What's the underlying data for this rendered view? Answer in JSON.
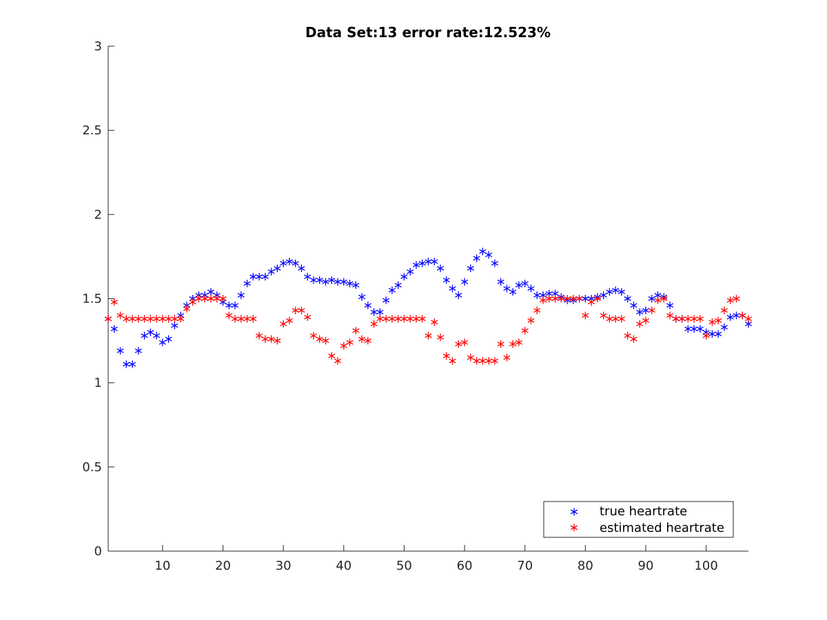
{
  "chart_data": {
    "type": "scatter",
    "title": "Data Set:13 error rate:12.523%",
    "xlabel": "",
    "ylabel": "",
    "xlim": [
      1,
      107
    ],
    "ylim": [
      0,
      3
    ],
    "xticks": [
      10,
      20,
      30,
      40,
      50,
      60,
      70,
      80,
      90,
      100
    ],
    "yticks": [
      0,
      0.5,
      1,
      1.5,
      2,
      2.5,
      3
    ],
    "ytick_labels": [
      "0",
      "0.5",
      "1",
      "1.5",
      "2",
      "2.5",
      "3"
    ],
    "grid": false,
    "legend_position": "bottom-right",
    "marker": "asterisk",
    "series": [
      {
        "name": "true heartrate",
        "color": "#0000ff",
        "x": [
          1,
          2,
          3,
          4,
          5,
          6,
          7,
          8,
          9,
          10,
          11,
          12,
          13,
          14,
          15,
          16,
          17,
          18,
          19,
          20,
          21,
          22,
          23,
          24,
          25,
          26,
          27,
          28,
          29,
          30,
          31,
          32,
          33,
          34,
          35,
          36,
          37,
          38,
          39,
          40,
          41,
          42,
          43,
          44,
          45,
          46,
          47,
          48,
          49,
          50,
          51,
          52,
          53,
          54,
          55,
          56,
          57,
          58,
          59,
          60,
          61,
          62,
          63,
          64,
          65,
          66,
          67,
          68,
          69,
          70,
          71,
          72,
          73,
          74,
          75,
          76,
          77,
          78,
          79,
          80,
          81,
          82,
          83,
          84,
          85,
          86,
          87,
          88,
          89,
          90,
          91,
          92,
          93,
          94,
          95,
          96,
          97,
          98,
          99,
          100,
          101,
          102,
          103,
          104,
          105,
          106,
          107
        ],
        "values": [
          1.38,
          1.32,
          1.19,
          1.11,
          1.11,
          1.19,
          1.28,
          1.3,
          1.28,
          1.24,
          1.26,
          1.34,
          1.4,
          1.46,
          1.5,
          1.52,
          1.52,
          1.54,
          1.52,
          1.48,
          1.46,
          1.46,
          1.52,
          1.59,
          1.63,
          1.63,
          1.63,
          1.66,
          1.68,
          1.71,
          1.72,
          1.71,
          1.68,
          1.63,
          1.61,
          1.61,
          1.6,
          1.61,
          1.6,
          1.6,
          1.59,
          1.58,
          1.51,
          1.46,
          1.42,
          1.42,
          1.49,
          1.55,
          1.58,
          1.63,
          1.66,
          1.7,
          1.71,
          1.72,
          1.72,
          1.68,
          1.61,
          1.56,
          1.52,
          1.6,
          1.68,
          1.74,
          1.78,
          1.76,
          1.71,
          1.6,
          1.56,
          1.54,
          1.58,
          1.59,
          1.56,
          1.52,
          1.52,
          1.53,
          1.53,
          1.51,
          1.49,
          1.49,
          1.5,
          1.5,
          1.5,
          1.51,
          1.52,
          1.54,
          1.55,
          1.54,
          1.5,
          1.46,
          1.42,
          1.43,
          1.5,
          1.52,
          1.51,
          1.46,
          1.38,
          1.38,
          1.32,
          1.32,
          1.32,
          1.3,
          1.29,
          1.29,
          1.33,
          1.39,
          1.4,
          1.4,
          1.35
        ]
      },
      {
        "name": "estimated heartrate",
        "color": "#ff0000",
        "x": [
          1,
          2,
          3,
          4,
          5,
          6,
          7,
          8,
          9,
          10,
          11,
          12,
          13,
          14,
          15,
          16,
          17,
          18,
          19,
          20,
          21,
          22,
          23,
          24,
          25,
          26,
          27,
          28,
          29,
          30,
          31,
          32,
          33,
          34,
          35,
          36,
          37,
          38,
          39,
          40,
          41,
          42,
          43,
          44,
          45,
          46,
          47,
          48,
          49,
          50,
          51,
          52,
          53,
          54,
          55,
          56,
          57,
          58,
          59,
          60,
          61,
          62,
          63,
          64,
          65,
          66,
          67,
          68,
          69,
          70,
          71,
          72,
          73,
          74,
          75,
          76,
          77,
          78,
          79,
          80,
          81,
          82,
          83,
          84,
          85,
          86,
          87,
          88,
          89,
          90,
          91,
          92,
          93,
          94,
          95,
          96,
          97,
          98,
          99,
          100,
          101,
          102,
          103,
          104,
          105,
          106,
          107
        ],
        "values": [
          1.38,
          1.48,
          1.4,
          1.38,
          1.38,
          1.38,
          1.38,
          1.38,
          1.38,
          1.38,
          1.38,
          1.38,
          1.38,
          1.44,
          1.48,
          1.5,
          1.5,
          1.5,
          1.5,
          1.5,
          1.4,
          1.38,
          1.38,
          1.38,
          1.38,
          1.28,
          1.26,
          1.26,
          1.25,
          1.35,
          1.37,
          1.43,
          1.43,
          1.39,
          1.28,
          1.26,
          1.25,
          1.16,
          1.13,
          1.22,
          1.24,
          1.31,
          1.26,
          1.25,
          1.35,
          1.38,
          1.38,
          1.38,
          1.38,
          1.38,
          1.38,
          1.38,
          1.38,
          1.28,
          1.36,
          1.27,
          1.16,
          1.13,
          1.23,
          1.24,
          1.15,
          1.13,
          1.13,
          1.13,
          1.13,
          1.23,
          1.15,
          1.23,
          1.24,
          1.31,
          1.37,
          1.43,
          1.49,
          1.5,
          1.5,
          1.5,
          1.5,
          1.5,
          1.5,
          1.4,
          1.48,
          1.5,
          1.4,
          1.38,
          1.38,
          1.38,
          1.28,
          1.26,
          1.35,
          1.37,
          1.43,
          1.49,
          1.5,
          1.4,
          1.38,
          1.38,
          1.38,
          1.38,
          1.38,
          1.28,
          1.36,
          1.37,
          1.43,
          1.49,
          1.5,
          1.4,
          1.38
        ]
      }
    ]
  }
}
